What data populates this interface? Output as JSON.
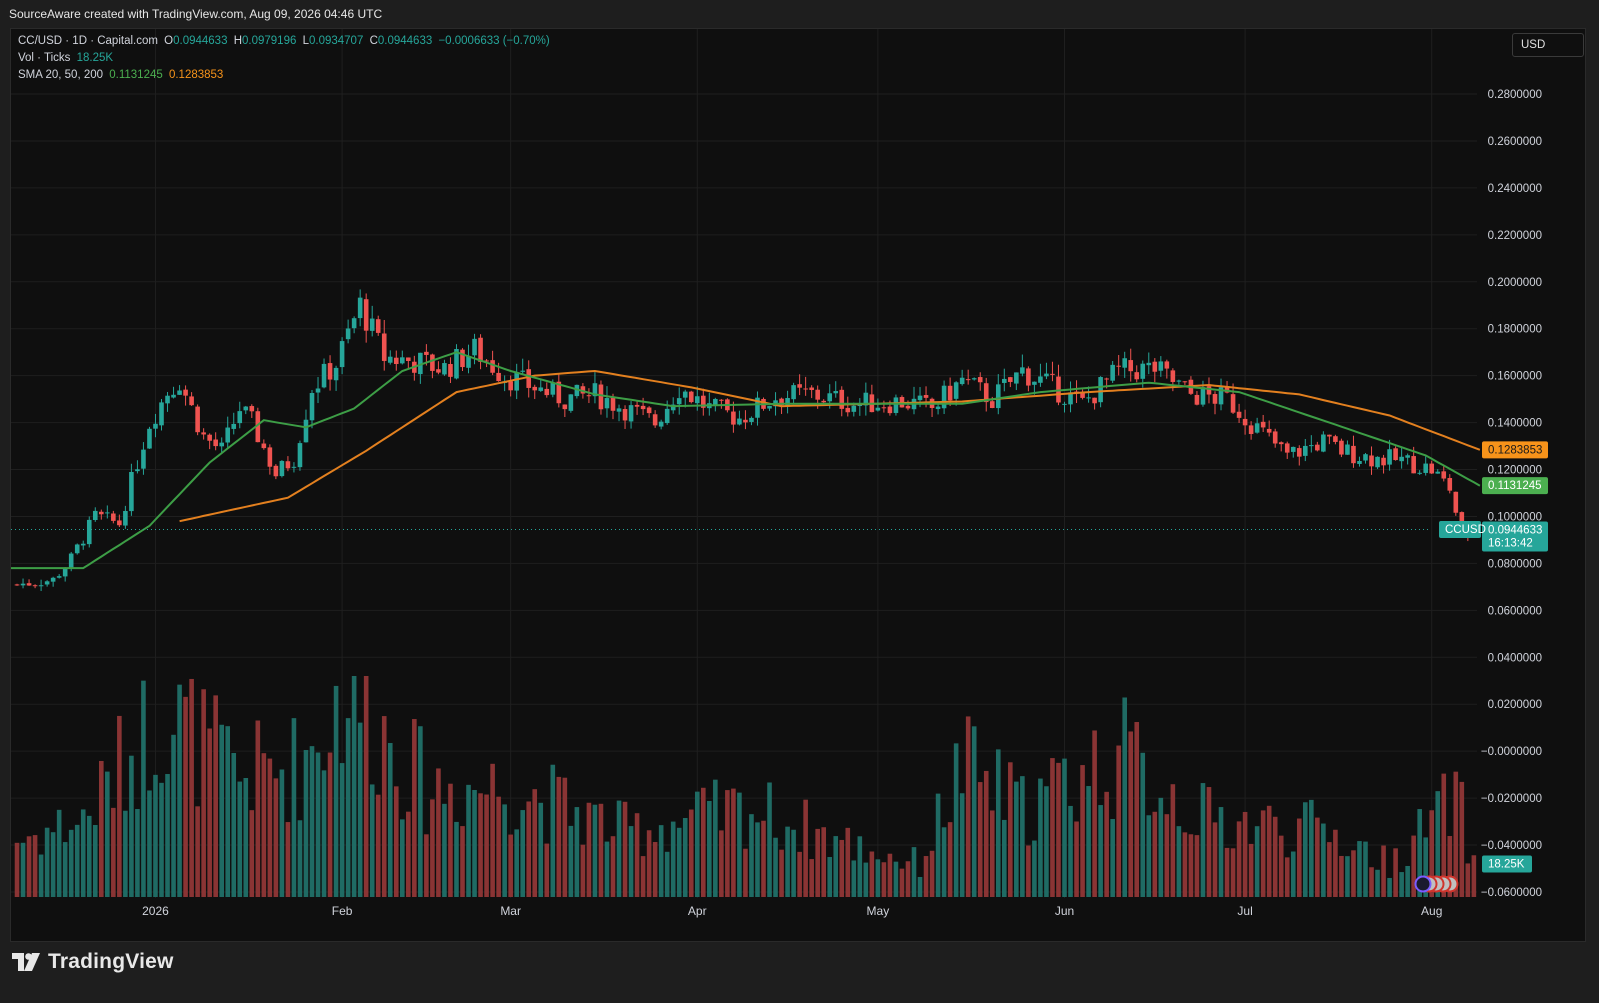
{
  "header": {
    "caption": "SourceAware created with TradingView.com, Aug 09, 2026 04:46 UTC"
  },
  "legend": {
    "symbol": "CC/USD · 1D · Capital.com",
    "open_label": "O",
    "open": "0.0944633",
    "high_label": "H",
    "high": "0.0979196",
    "low_label": "L",
    "low": "0.0934707",
    "close_label": "C",
    "close": "0.0944633",
    "change": "−0.0006633 (−0.70%)",
    "vol_label": "Vol · Ticks",
    "vol_value": "18.25K",
    "sma_label": "SMA 20, 50, 200",
    "sma20_value": "0.1131245",
    "sma50_value": "0.1283853"
  },
  "currency_button": "USD",
  "branding": {
    "logo_text": "TradingView"
  },
  "colors": {
    "up": "#26a69a",
    "down": "#ef5350",
    "sma20": "#3d9e46",
    "sma50": "#e3801f",
    "background": "#0f0f0f"
  },
  "chart_data": {
    "type": "candlestick",
    "title": "CC/USD · 1D · Capital.com",
    "y_axis": {
      "ticks": [
        "0.2800000",
        "0.2600000",
        "0.2400000",
        "0.2200000",
        "0.2000000",
        "0.1800000",
        "0.1600000",
        "0.1400000",
        "0.1200000",
        "0.1000000",
        "0.0800000",
        "0.0600000",
        "0.0400000",
        "0.0200000",
        "−0.0000000",
        "−0.0200000",
        "−0.0400000",
        "−0.0600000"
      ],
      "tick_values": [
        0.28,
        0.26,
        0.24,
        0.22,
        0.2,
        0.18,
        0.16,
        0.14,
        0.12,
        0.1,
        0.08,
        0.06,
        0.04,
        0.02,
        0.0,
        -0.02,
        -0.04,
        -0.06
      ],
      "range": [
        -0.066,
        0.3
      ]
    },
    "x_axis": {
      "labels": [
        "2026",
        "Feb",
        "Mar",
        "Apr",
        "May",
        "Jun",
        "Jul",
        "Aug"
      ],
      "range": [
        "2025-12-08",
        "2026-08-24"
      ]
    },
    "grid": true,
    "ohlc_waypoints": [
      {
        "date": "2025-12-09",
        "close": 0.071
      },
      {
        "date": "2025-12-15",
        "close": 0.073
      },
      {
        "date": "2025-12-18",
        "close": 0.082
      },
      {
        "date": "2025-12-22",
        "close": 0.1
      },
      {
        "date": "2025-12-26",
        "close": 0.097
      },
      {
        "date": "2025-12-28",
        "close": 0.115
      },
      {
        "date": "2025-12-31",
        "close": 0.14
      },
      {
        "date": "2026-01-03",
        "close": 0.153
      },
      {
        "date": "2026-01-05",
        "close": 0.158
      },
      {
        "date": "2026-01-09",
        "close": 0.134
      },
      {
        "date": "2026-01-12",
        "close": 0.128
      },
      {
        "date": "2026-01-15",
        "close": 0.146
      },
      {
        "date": "2026-01-17",
        "close": 0.14
      },
      {
        "date": "2026-01-21",
        "close": 0.118
      },
      {
        "date": "2026-01-24",
        "close": 0.125
      },
      {
        "date": "2026-01-27",
        "close": 0.155
      },
      {
        "date": "2026-01-31",
        "close": 0.165
      },
      {
        "date": "2026-02-04",
        "close": 0.19
      },
      {
        "date": "2026-02-08",
        "close": 0.168
      },
      {
        "date": "2026-02-13",
        "close": 0.166
      },
      {
        "date": "2026-02-18",
        "close": 0.163
      },
      {
        "date": "2026-02-23",
        "close": 0.171
      },
      {
        "date": "2026-02-28",
        "close": 0.16
      },
      {
        "date": "2026-03-05",
        "close": 0.155
      },
      {
        "date": "2026-03-10",
        "close": 0.15
      },
      {
        "date": "2026-03-15",
        "close": 0.152
      },
      {
        "date": "2026-03-20",
        "close": 0.146
      },
      {
        "date": "2026-03-25",
        "close": 0.14
      },
      {
        "date": "2026-03-29",
        "close": 0.155
      },
      {
        "date": "2026-04-03",
        "close": 0.146
      },
      {
        "date": "2026-04-08",
        "close": 0.142
      },
      {
        "date": "2026-04-14",
        "close": 0.151
      },
      {
        "date": "2026-04-20",
        "close": 0.152
      },
      {
        "date": "2026-04-27",
        "close": 0.148
      },
      {
        "date": "2026-05-05",
        "close": 0.149
      },
      {
        "date": "2026-05-10",
        "close": 0.146
      },
      {
        "date": "2026-05-15",
        "close": 0.158
      },
      {
        "date": "2026-05-20",
        "close": 0.15
      },
      {
        "date": "2026-05-25",
        "close": 0.162
      },
      {
        "date": "2026-05-30",
        "close": 0.155
      },
      {
        "date": "2026-06-04",
        "close": 0.148
      },
      {
        "date": "2026-06-10",
        "close": 0.162
      },
      {
        "date": "2026-06-16",
        "close": 0.163
      },
      {
        "date": "2026-06-22",
        "close": 0.152
      },
      {
        "date": "2026-06-28",
        "close": 0.15
      },
      {
        "date": "2026-07-02",
        "close": 0.14
      },
      {
        "date": "2026-07-08",
        "close": 0.126
      },
      {
        "date": "2026-07-14",
        "close": 0.132
      },
      {
        "date": "2026-07-17",
        "close": 0.128
      },
      {
        "date": "2026-07-22",
        "close": 0.125
      },
      {
        "date": "2026-07-27",
        "close": 0.124
      },
      {
        "date": "2026-08-01",
        "close": 0.12
      },
      {
        "date": "2026-08-04",
        "close": 0.112
      },
      {
        "date": "2026-08-06",
        "close": 0.092
      },
      {
        "date": "2026-08-08",
        "close": 0.0944633
      }
    ],
    "series": [
      {
        "name": "SMA 20",
        "values": [
          {
            "date": "2025-12-08",
            "value": 0.078
          },
          {
            "date": "2025-12-20",
            "value": 0.078
          },
          {
            "date": "2025-12-31",
            "value": 0.096
          },
          {
            "date": "2026-01-10",
            "value": 0.123
          },
          {
            "date": "2026-01-19",
            "value": 0.141
          },
          {
            "date": "2026-01-26",
            "value": 0.138
          },
          {
            "date": "2026-02-03",
            "value": 0.146
          },
          {
            "date": "2026-02-11",
            "value": 0.162
          },
          {
            "date": "2026-02-20",
            "value": 0.17
          },
          {
            "date": "2026-03-01",
            "value": 0.162
          },
          {
            "date": "2026-03-15",
            "value": 0.152
          },
          {
            "date": "2026-03-28",
            "value": 0.147
          },
          {
            "date": "2026-04-15",
            "value": 0.148
          },
          {
            "date": "2026-05-15",
            "value": 0.148
          },
          {
            "date": "2026-05-28",
            "value": 0.153
          },
          {
            "date": "2026-06-15",
            "value": 0.157
          },
          {
            "date": "2026-06-30",
            "value": 0.153
          },
          {
            "date": "2026-07-15",
            "value": 0.14
          },
          {
            "date": "2026-07-31",
            "value": 0.126
          },
          {
            "date": "2026-08-09",
            "value": 0.1131245
          }
        ]
      },
      {
        "name": "SMA 50",
        "values": [
          {
            "date": "2026-01-05",
            "value": 0.098
          },
          {
            "date": "2026-01-23",
            "value": 0.108
          },
          {
            "date": "2026-02-05",
            "value": 0.128
          },
          {
            "date": "2026-02-20",
            "value": 0.153
          },
          {
            "date": "2026-03-05",
            "value": 0.16
          },
          {
            "date": "2026-03-15",
            "value": 0.162
          },
          {
            "date": "2026-03-31",
            "value": 0.155
          },
          {
            "date": "2026-04-15",
            "value": 0.147
          },
          {
            "date": "2026-05-15",
            "value": 0.149
          },
          {
            "date": "2026-06-05",
            "value": 0.153
          },
          {
            "date": "2026-06-25",
            "value": 0.156
          },
          {
            "date": "2026-07-10",
            "value": 0.152
          },
          {
            "date": "2026-07-25",
            "value": 0.143
          },
          {
            "date": "2026-08-09",
            "value": 0.1283853
          }
        ]
      }
    ],
    "volume": {
      "label": "Vol · Ticks",
      "last": "18.25K",
      "waypoints": [
        {
          "date": "2025-12-08",
          "value": 0.25
        },
        {
          "date": "2025-12-20",
          "value": 0.35
        },
        {
          "date": "2026-01-02",
          "value": 0.85
        },
        {
          "date": "2026-01-15",
          "value": 0.55
        },
        {
          "date": "2026-01-25",
          "value": 0.6
        },
        {
          "date": "2026-02-02",
          "value": 0.95
        },
        {
          "date": "2026-02-15",
          "value": 0.5
        },
        {
          "date": "2026-03-01",
          "value": 0.5
        },
        {
          "date": "2026-03-20",
          "value": 0.3
        },
        {
          "date": "2026-04-10",
          "value": 0.4
        },
        {
          "date": "2026-04-25",
          "value": 0.25
        },
        {
          "date": "2026-05-08",
          "value": 0.15
        },
        {
          "date": "2026-05-15",
          "value": 0.6
        },
        {
          "date": "2026-05-25",
          "value": 0.4
        },
        {
          "date": "2026-06-10",
          "value": 0.65
        },
        {
          "date": "2026-06-25",
          "value": 0.35
        },
        {
          "date": "2026-07-15",
          "value": 0.3
        },
        {
          "date": "2026-07-25",
          "value": 0.15
        },
        {
          "date": "2026-08-05",
          "value": 0.45
        },
        {
          "date": "2026-08-09",
          "value": 0.1
        }
      ]
    },
    "price_labels": {
      "sma50": "0.1283853",
      "sma20": "0.1131245",
      "symbol_tag": "CCUSD",
      "last": "0.0944633",
      "countdown": "16:13:42",
      "volume": "18.25K"
    }
  }
}
